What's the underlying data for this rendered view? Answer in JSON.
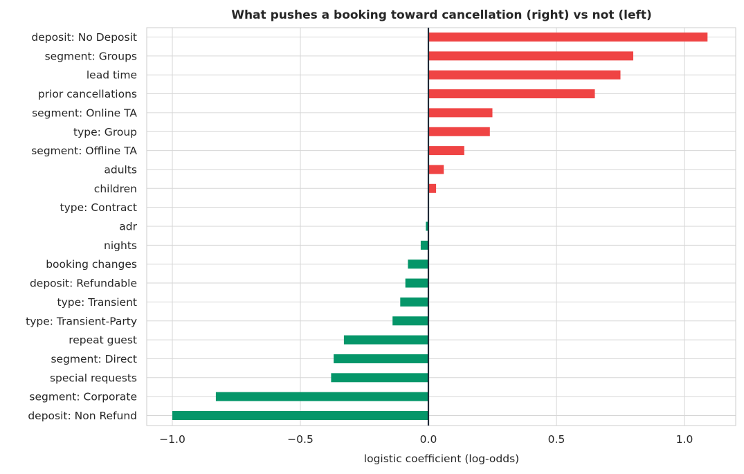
{
  "chart_data": {
    "type": "bar",
    "orientation": "horizontal",
    "title": "What pushes a booking toward cancellation (right) vs not (left)",
    "xlabel": "logistic coefficient (log-odds)",
    "ylabel": "",
    "xlim": [
      -1.1,
      1.2
    ],
    "xticks": [
      -1.0,
      -0.5,
      0.0,
      0.5,
      1.0
    ],
    "xtick_labels": [
      "−1.0",
      "−0.5",
      "0.0",
      "0.5",
      "1.0"
    ],
    "grid": true,
    "colors": {
      "positive": "#ef4444",
      "negative": "#059669"
    },
    "categories": [
      "deposit: No Deposit",
      "segment: Groups",
      "lead time",
      "prior cancellations",
      "segment: Online TA",
      "type: Group",
      "segment: Offline TA",
      "adults",
      "children",
      "type: Contract",
      "adr",
      "nights",
      "booking changes",
      "deposit: Refundable",
      "type: Transient",
      "type: Transient-Party",
      "repeat guest",
      "segment: Direct",
      "special requests",
      "segment: Corporate",
      "deposit: Non Refund"
    ],
    "values": [
      1.09,
      0.8,
      0.75,
      0.65,
      0.25,
      0.24,
      0.14,
      0.06,
      0.03,
      0.0,
      -0.01,
      -0.03,
      -0.08,
      -0.09,
      -0.11,
      -0.14,
      -0.33,
      -0.37,
      -0.38,
      -0.83,
      -1.0
    ]
  }
}
